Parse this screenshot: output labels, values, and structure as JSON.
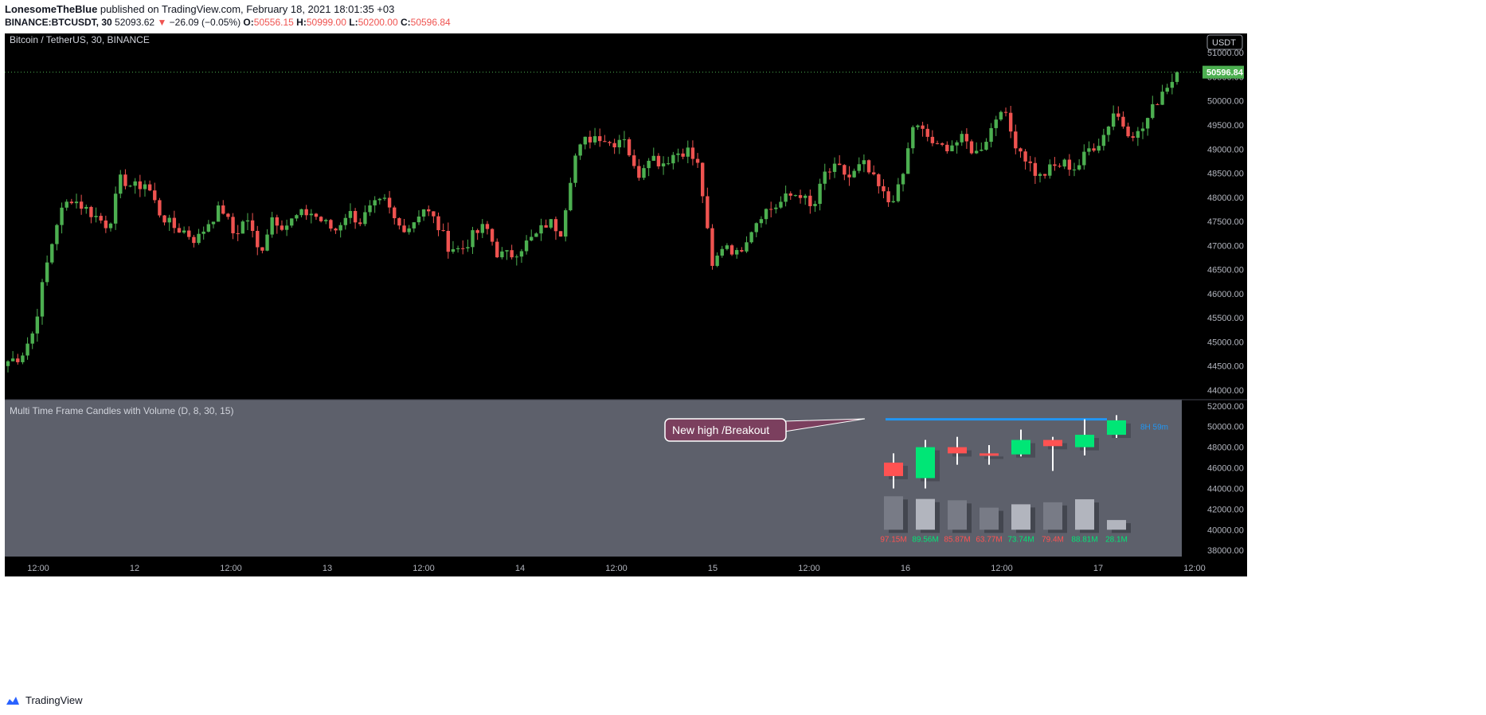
{
  "header": {
    "author": "LonesomeTheBlue",
    "published_text": "published on TradingView.com, February 18, 2021 18:01:35 +03",
    "symbol": "BINANCE:BTCUSDT, 30",
    "last_price": "52093.62",
    "change": "−26.09 (−0.05%)",
    "open_label": "O:",
    "open": "50556.15",
    "high_label": "H:",
    "high": "50999.00",
    "low_label": "L:",
    "low": "50200.00",
    "close_label": "C:",
    "close": "50596.84"
  },
  "footer": {
    "brand": "TradingView"
  },
  "colors": {
    "up": "#26a69a",
    "up_candle": "#4caf50",
    "down": "#ef5350",
    "panel_bg": "#5d606b",
    "main_bg": "#000000",
    "annotation_bg": "#7b3f5e",
    "accent_line": "#2196f3",
    "mtf_up": "#00e676",
    "mtf_down": "#ff5252"
  },
  "chart_data": [
    {
      "type": "candlestick",
      "title": "Bitcoin / TetherUS, 30, BINANCE",
      "currency_label": "USDT",
      "y_ticks": [
        44000,
        44500,
        45000,
        45500,
        46000,
        46500,
        47000,
        47500,
        48000,
        48500,
        49000,
        49500,
        50000,
        50500,
        51000
      ],
      "ylim": [
        43800,
        51400
      ],
      "x_tick_labels": [
        "12:00",
        "12",
        "12:00",
        "13",
        "12:00",
        "14",
        "12:00",
        "15",
        "12:00",
        "16",
        "12:00",
        "17",
        "12:00"
      ],
      "last_price_label": "50596.84",
      "last_price": 50596.84,
      "price_path": [
        44600,
        44700,
        45200,
        46500,
        47600,
        48000,
        47800,
        47600,
        47400,
        48400,
        48200,
        48300,
        47700,
        47400,
        47300,
        47100,
        47500,
        47800,
        47200,
        47600,
        46800,
        47600,
        47400,
        47600,
        47700,
        47500,
        47300,
        47700,
        47500,
        47800,
        47900,
        47400,
        47400,
        47800,
        47500,
        47000,
        46900,
        47200,
        47400,
        46800,
        46800,
        47000,
        47200,
        47500,
        47300,
        48800,
        49200,
        49300,
        49100,
        49300,
        48400,
        48900,
        48700,
        48900,
        49000,
        48600,
        46500,
        47100,
        46800,
        47300,
        47700,
        47800,
        48000,
        48100,
        47700,
        48500,
        48600,
        48400,
        48700,
        48300,
        47900,
        48200,
        49500,
        49300,
        49000,
        49100,
        49200,
        48900,
        49300,
        49900,
        49200,
        48800,
        48400,
        48600,
        48700,
        48600,
        49000,
        49200,
        49800,
        49400,
        49300,
        49800,
        50300,
        50500
      ]
    },
    {
      "type": "candlestick",
      "title": "Multi Time Frame Candles with Volume (D, 8, 30, 15)",
      "y_ticks": [
        38000,
        40000,
        42000,
        44000,
        46000,
        48000,
        50000,
        52000
      ],
      "ylim": [
        37400,
        52600
      ],
      "candles": [
        {
          "o": 46500,
          "h": 47400,
          "l": 44000,
          "c": 45200
        },
        {
          "o": 45000,
          "h": 48700,
          "l": 44000,
          "c": 48000
        },
        {
          "o": 48000,
          "h": 49000,
          "l": 46300,
          "c": 47400
        },
        {
          "o": 47400,
          "h": 48200,
          "l": 46300,
          "c": 47200
        },
        {
          "o": 47300,
          "h": 49700,
          "l": 47100,
          "c": 48700
        },
        {
          "o": 48700,
          "h": 49000,
          "l": 45700,
          "c": 48100
        },
        {
          "o": 48000,
          "h": 50700,
          "l": 47200,
          "c": 49200
        },
        {
          "o": 49200,
          "h": 51100,
          "l": 48900,
          "c": 50600
        }
      ],
      "volumes": [
        {
          "value": "97.15M",
          "dir": "down",
          "level": 1.0
        },
        {
          "value": "89.56M",
          "dir": "up",
          "level": 0.92
        },
        {
          "value": "85.87M",
          "dir": "down",
          "level": 0.88
        },
        {
          "value": "63.77M",
          "dir": "down",
          "level": 0.66
        },
        {
          "value": "73.74M",
          "dir": "up",
          "level": 0.76
        },
        {
          "value": "79.4M",
          "dir": "down",
          "level": 0.82
        },
        {
          "value": "88.81M",
          "dir": "up",
          "level": 0.91
        },
        {
          "value": "28.1M",
          "dir": "up",
          "level": 0.29
        }
      ],
      "high_line": 50700,
      "timer_label": "8H 59m",
      "annotation": "New high /Breakout"
    }
  ]
}
